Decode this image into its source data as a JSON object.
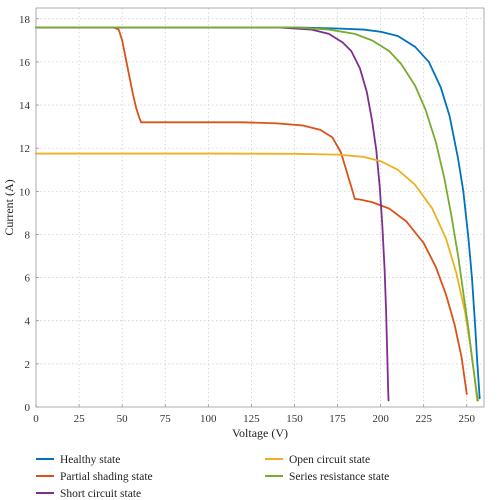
{
  "chart_data": {
    "type": "line",
    "title": "",
    "xlabel": "Voltage (V)",
    "ylabel": "Current (A)",
    "xlim": [
      0,
      260
    ],
    "ylim": [
      0,
      18.5
    ],
    "xticks": [
      0,
      25,
      50,
      75,
      100,
      125,
      150,
      175,
      200,
      225,
      250
    ],
    "yticks": [
      0,
      2,
      4,
      6,
      8,
      10,
      12,
      14,
      16,
      18
    ],
    "grid": true,
    "legend_position": "bottom",
    "series": [
      {
        "name": "Healthy state",
        "color": "#0072BD",
        "points": [
          [
            0,
            17.6
          ],
          [
            50,
            17.6
          ],
          [
            100,
            17.6
          ],
          [
            150,
            17.6
          ],
          [
            175,
            17.55
          ],
          [
            190,
            17.5
          ],
          [
            200,
            17.4
          ],
          [
            210,
            17.2
          ],
          [
            220,
            16.7
          ],
          [
            228,
            16.0
          ],
          [
            235,
            14.8
          ],
          [
            240,
            13.5
          ],
          [
            245,
            11.5
          ],
          [
            248,
            10.0
          ],
          [
            251,
            7.8
          ],
          [
            253,
            6.0
          ],
          [
            255,
            3.6
          ],
          [
            256,
            2.2
          ],
          [
            257,
            1.0
          ],
          [
            257.5,
            0.4
          ]
        ]
      },
      {
        "name": "Partial shading state",
        "color": "#D95319",
        "points": [
          [
            0,
            17.6
          ],
          [
            45,
            17.6
          ],
          [
            48,
            17.5
          ],
          [
            50,
            17.0
          ],
          [
            52,
            16.2
          ],
          [
            54,
            15.4
          ],
          [
            56,
            14.6
          ],
          [
            58,
            13.9
          ],
          [
            60,
            13.4
          ],
          [
            61,
            13.2
          ],
          [
            80,
            13.2
          ],
          [
            100,
            13.2
          ],
          [
            120,
            13.2
          ],
          [
            140,
            13.15
          ],
          [
            155,
            13.05
          ],
          [
            165,
            12.85
          ],
          [
            172,
            12.5
          ],
          [
            177,
            11.8
          ],
          [
            180,
            11.0
          ],
          [
            183,
            10.2
          ],
          [
            185,
            9.65
          ],
          [
            188,
            9.62
          ],
          [
            195,
            9.5
          ],
          [
            205,
            9.2
          ],
          [
            215,
            8.6
          ],
          [
            225,
            7.6
          ],
          [
            232,
            6.5
          ],
          [
            238,
            5.2
          ],
          [
            243,
            3.8
          ],
          [
            247,
            2.3
          ],
          [
            250,
            0.6
          ]
        ]
      },
      {
        "name": "Short circuit state",
        "color": "#7E2F8E",
        "points": [
          [
            0,
            17.6
          ],
          [
            100,
            17.6
          ],
          [
            140,
            17.6
          ],
          [
            160,
            17.5
          ],
          [
            170,
            17.3
          ],
          [
            178,
            16.9
          ],
          [
            183,
            16.5
          ],
          [
            188,
            15.7
          ],
          [
            192,
            14.6
          ],
          [
            195,
            13.3
          ],
          [
            197.5,
            11.9
          ],
          [
            199.5,
            10.2
          ],
          [
            201,
            8.4
          ],
          [
            202.3,
            6.4
          ],
          [
            203.2,
            4.4
          ],
          [
            203.8,
            2.6
          ],
          [
            204.3,
            1.0
          ],
          [
            204.6,
            0.3
          ]
        ]
      },
      {
        "name": "Open circuit state",
        "color": "#EDB120",
        "points": [
          [
            0,
            11.75
          ],
          [
            50,
            11.75
          ],
          [
            100,
            11.75
          ],
          [
            150,
            11.74
          ],
          [
            175,
            11.7
          ],
          [
            190,
            11.6
          ],
          [
            200,
            11.4
          ],
          [
            210,
            11.0
          ],
          [
            220,
            10.3
          ],
          [
            230,
            9.2
          ],
          [
            238,
            7.8
          ],
          [
            244,
            6.2
          ],
          [
            249,
            4.4
          ],
          [
            252,
            2.9
          ],
          [
            254.5,
            1.4
          ],
          [
            256,
            0.3
          ]
        ]
      },
      {
        "name": "Series resistance state",
        "color": "#77AC30",
        "points": [
          [
            0,
            17.6
          ],
          [
            50,
            17.6
          ],
          [
            100,
            17.6
          ],
          [
            150,
            17.6
          ],
          [
            170,
            17.5
          ],
          [
            185,
            17.3
          ],
          [
            195,
            17.0
          ],
          [
            205,
            16.5
          ],
          [
            212,
            15.9
          ],
          [
            220,
            14.9
          ],
          [
            226,
            13.8
          ],
          [
            232,
            12.3
          ],
          [
            237,
            10.6
          ],
          [
            241,
            8.9
          ],
          [
            245,
            7.0
          ],
          [
            248,
            5.3
          ],
          [
            251,
            3.6
          ],
          [
            253.5,
            2.0
          ],
          [
            255.5,
            0.8
          ],
          [
            256.5,
            0.3
          ]
        ]
      }
    ]
  }
}
